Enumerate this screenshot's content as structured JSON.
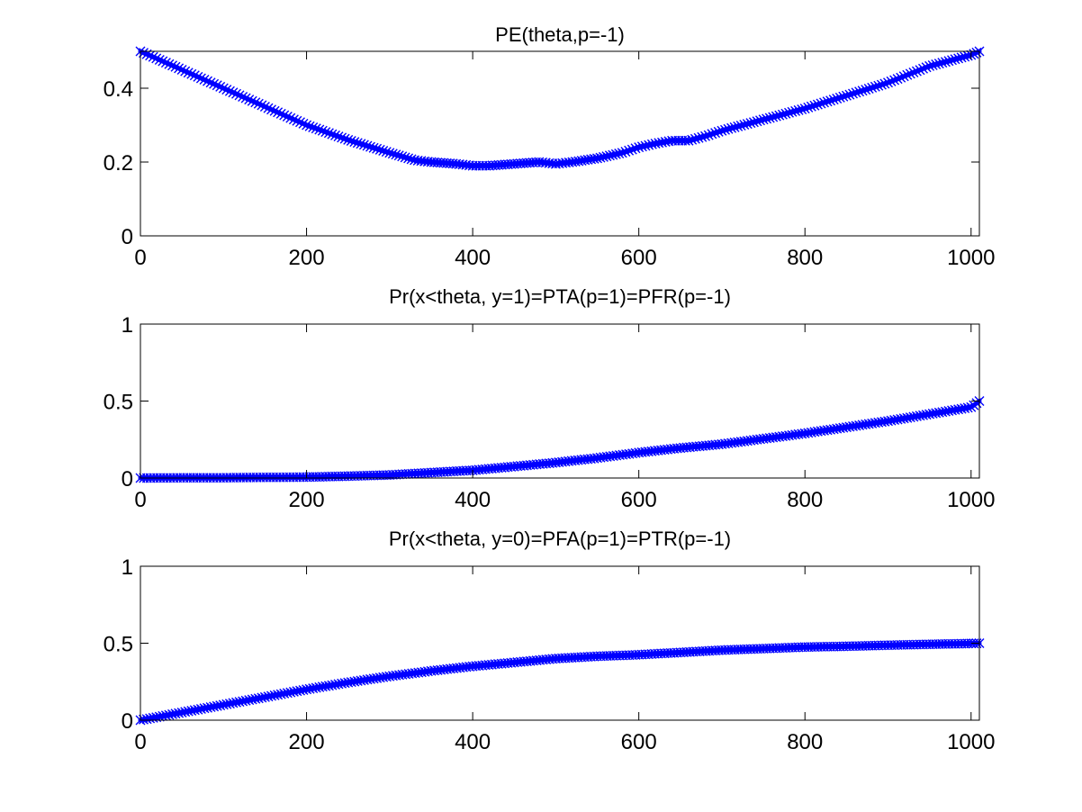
{
  "figure": {
    "background": "#ffffff",
    "series_color": "#0000ff",
    "marker": "x"
  },
  "chart_data": [
    {
      "type": "line",
      "title": "PE(theta,p=-1)",
      "xlabel": "",
      "ylabel": "",
      "xlim": [
        0,
        1010
      ],
      "ylim": [
        0,
        0.5
      ],
      "xticks": [
        0,
        200,
        400,
        600,
        800,
        1000
      ],
      "xtick_labels": [
        "0",
        "200",
        "400",
        "600",
        "800",
        "1000"
      ],
      "yticks": [
        0,
        0.2,
        0.4
      ],
      "ytick_labels": [
        "0",
        "0.2",
        "0.4"
      ],
      "grid": false,
      "series": [
        {
          "color": "#0000ff",
          "x": [
            0,
            50,
            100,
            150,
            200,
            250,
            300,
            330,
            350,
            380,
            400,
            420,
            450,
            480,
            500,
            520,
            550,
            580,
            600,
            620,
            640,
            660,
            680,
            700,
            750,
            800,
            850,
            900,
            950,
            1000,
            1010
          ],
          "y": [
            0.5,
            0.45,
            0.4,
            0.35,
            0.3,
            0.26,
            0.225,
            0.205,
            0.2,
            0.195,
            0.19,
            0.19,
            0.195,
            0.2,
            0.195,
            0.2,
            0.21,
            0.225,
            0.24,
            0.25,
            0.258,
            0.258,
            0.27,
            0.285,
            0.315,
            0.345,
            0.38,
            0.415,
            0.46,
            0.49,
            0.5
          ]
        }
      ]
    },
    {
      "type": "line",
      "title": "Pr(x<theta, y=1)=PTA(p=1)=PFR(p=-1)",
      "xlabel": "",
      "ylabel": "",
      "xlim": [
        0,
        1010
      ],
      "ylim": [
        0,
        1
      ],
      "xticks": [
        0,
        200,
        400,
        600,
        800,
        1000
      ],
      "xtick_labels": [
        "0",
        "200",
        "400",
        "600",
        "800",
        "1000"
      ],
      "yticks": [
        0,
        0.5,
        1
      ],
      "ytick_labels": [
        "0",
        "0.5",
        "1"
      ],
      "grid": false,
      "series": [
        {
          "color": "#0000ff",
          "x": [
            0,
            100,
            200,
            250,
            300,
            350,
            400,
            450,
            500,
            550,
            600,
            650,
            700,
            750,
            800,
            850,
            900,
            950,
            1000,
            1010
          ],
          "y": [
            0,
            0.002,
            0.006,
            0.012,
            0.02,
            0.035,
            0.05,
            0.075,
            0.1,
            0.13,
            0.165,
            0.195,
            0.22,
            0.255,
            0.29,
            0.33,
            0.37,
            0.415,
            0.46,
            0.5
          ]
        }
      ]
    },
    {
      "type": "line",
      "title": "Pr(x<theta, y=0)=PFA(p=1)=PTR(p=-1)",
      "xlabel": "",
      "ylabel": "",
      "xlim": [
        0,
        1010
      ],
      "ylim": [
        0,
        1
      ],
      "xticks": [
        0,
        200,
        400,
        600,
        800,
        1000
      ],
      "xtick_labels": [
        "0",
        "200",
        "400",
        "600",
        "800",
        "1000"
      ],
      "yticks": [
        0,
        0.5,
        1
      ],
      "ytick_labels": [
        "0",
        "0.5",
        "1"
      ],
      "grid": false,
      "series": [
        {
          "color": "#0000ff",
          "x": [
            0,
            50,
            100,
            150,
            200,
            250,
            300,
            350,
            400,
            450,
            500,
            550,
            600,
            650,
            700,
            750,
            800,
            850,
            900,
            950,
            1000,
            1010
          ],
          "y": [
            0,
            0.05,
            0.1,
            0.15,
            0.2,
            0.245,
            0.285,
            0.32,
            0.35,
            0.375,
            0.4,
            0.415,
            0.425,
            0.44,
            0.455,
            0.465,
            0.475,
            0.48,
            0.487,
            0.493,
            0.498,
            0.5
          ]
        }
      ]
    }
  ]
}
